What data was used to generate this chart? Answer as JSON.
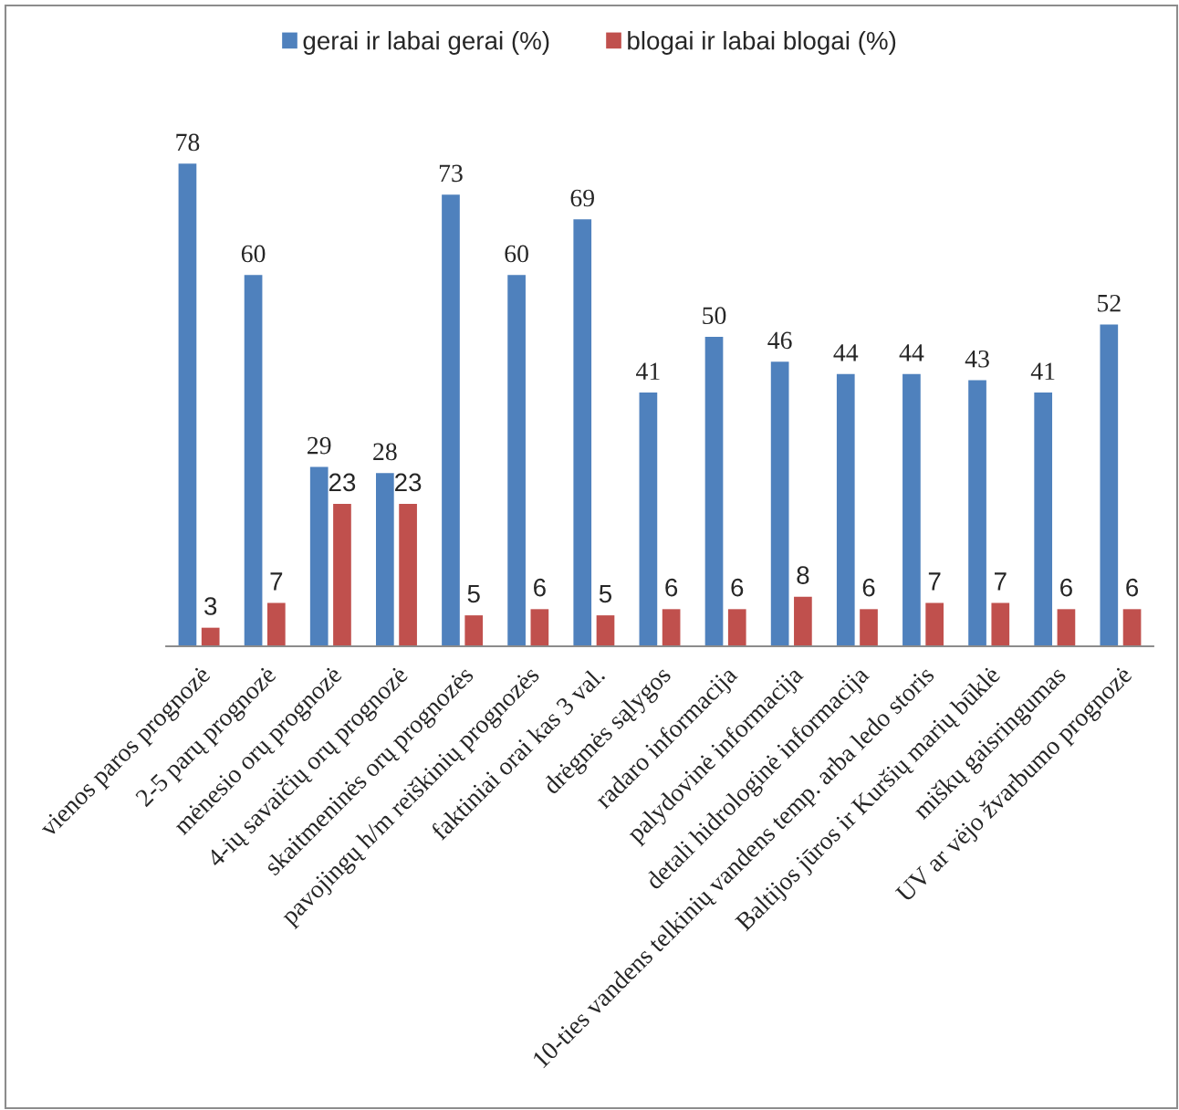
{
  "chart_data": {
    "type": "bar",
    "categories": [
      "vienos paros prognozė",
      "2-5 parų prognozė",
      "mėnesio orų prognozė",
      "4-ių savaičių orų prognozė",
      "skaitmeninės orų prognozės",
      "pavojingų h/m reiškinių prognozės",
      "faktiniai orai kas 3 val.",
      "drėgmės sąlygos",
      "radaro informacija",
      "palydovinė informacija",
      "detali hidrologinė informacija",
      "10-ties vandens telkinių vandens temp. arba ledo storis",
      "Baltijos jūros ir Kuršių marių būklė",
      "miškų gaisringumas",
      "UV ar vėjo žvarbumo prognozė"
    ],
    "series": [
      {
        "name": "gerai ir labai gerai (%)",
        "color": "#4f81bd",
        "values": [
          78,
          60,
          29,
          28,
          73,
          60,
          69,
          41,
          50,
          46,
          44,
          44,
          43,
          41,
          52
        ]
      },
      {
        "name": "blogai ir labai blogai (%)",
        "color": "#c0504d",
        "values": [
          3,
          7,
          23,
          23,
          5,
          6,
          5,
          6,
          6,
          8,
          6,
          7,
          7,
          6,
          6
        ]
      }
    ],
    "data_labels": true,
    "legend": "top",
    "grid": false
  }
}
